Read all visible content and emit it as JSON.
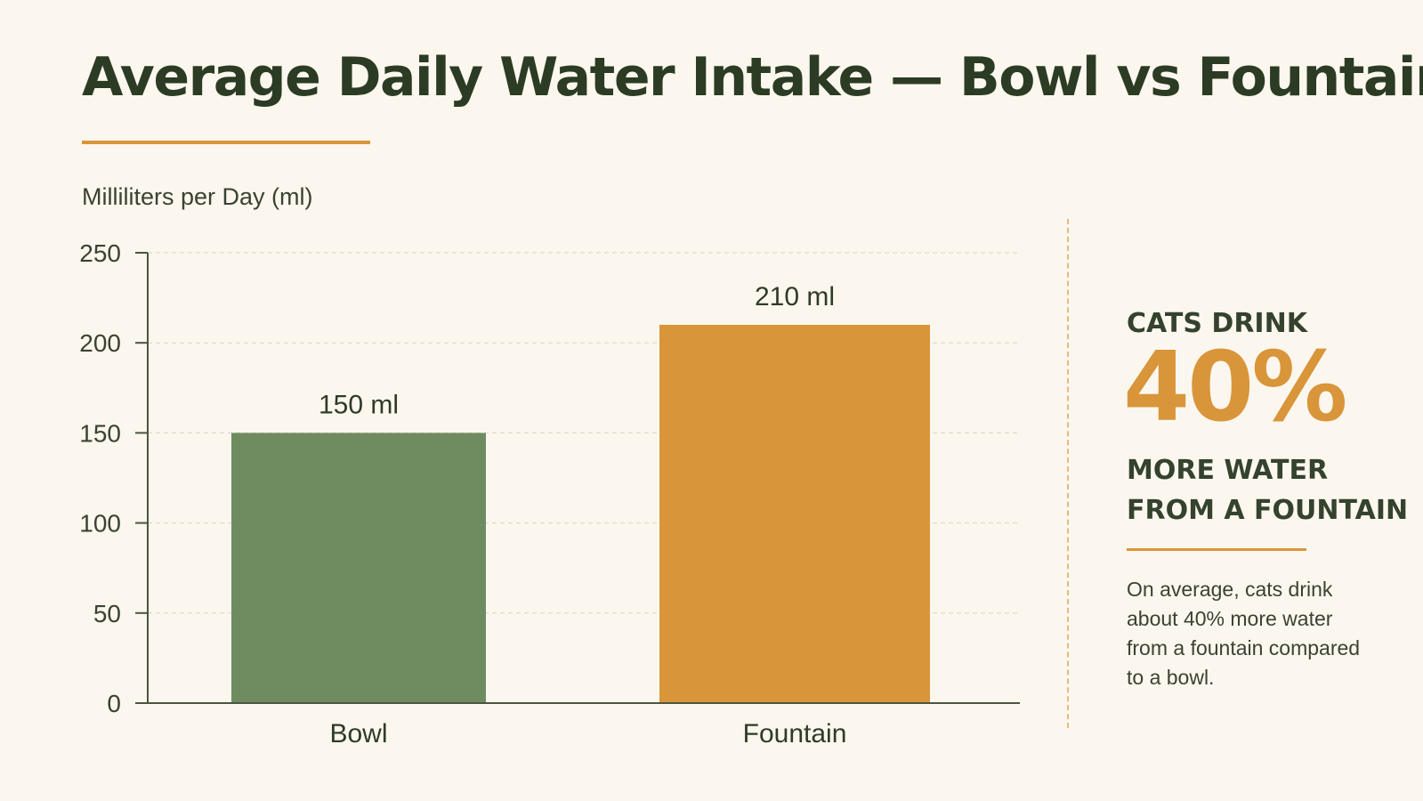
{
  "title": "Average Daily Water Intake — Bowl vs Fountain",
  "colors": {
    "accent": "#d9953a",
    "bowl": "#6f8c60",
    "fountain": "#d9953a",
    "text_dark": "#2c3b24",
    "background": "#fbf7ee"
  },
  "chart_data": {
    "type": "bar",
    "title": "Average Daily Water Intake — Bowl vs Fountain",
    "xlabel": "",
    "ylabel": "Milliliters per Day (ml)",
    "categories": [
      "Bowl",
      "Fountain"
    ],
    "values": [
      150,
      210
    ],
    "data_labels": [
      "150 ml",
      "210 ml"
    ],
    "bar_colors": [
      "#6f8c60",
      "#d9953a"
    ],
    "ylim": [
      0,
      250
    ],
    "yticks": [
      0,
      50,
      100,
      150,
      200,
      250
    ],
    "grid": true,
    "legend": "none"
  },
  "callout": {
    "lead": "CATS DRINK",
    "big": "40%",
    "tail": "MORE WATER FROM A FOUNTAIN",
    "note": "On average, cats drink about 40% more water from a fountain compared to a bowl."
  }
}
